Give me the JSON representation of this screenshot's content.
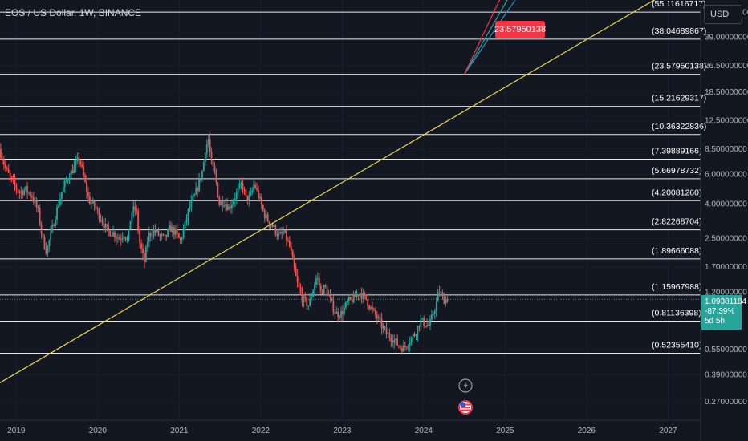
{
  "header": {
    "title": "EOS / US Dollar, 1W, BINANCE",
    "currency_button": "USD"
  },
  "price_tag": {
    "price": "1.09381184",
    "change": "-87.39%",
    "countdown": "5d 5h"
  },
  "callout_label": "23.57950138",
  "icons": [
    "lightning-icon",
    "us-flag-icon"
  ],
  "chart_data": {
    "type": "candlestick",
    "x_range": [
      2018.8,
      2027.4
    ],
    "y_scale": "log",
    "y_range": [
      0.21,
      65
    ],
    "x_tick_labels": [
      "2019",
      "2020",
      "2021",
      "2022",
      "2023",
      "2024",
      "2025",
      "2026",
      "2027"
    ],
    "x_tick_values": [
      2019,
      2020,
      2021,
      2022,
      2023,
      2024,
      2025,
      2026,
      2027
    ],
    "y_tick_labels": [
      "55.00000000",
      "39.00000000",
      "26.50000000",
      "18.50000000",
      "12.50000000",
      "8.50000000",
      "6.00000000",
      "4.00000000",
      "2.50000000",
      "1.70000000",
      "1.20000000",
      "0.55000000",
      "0.39000000",
      "0.27000000"
    ],
    "y_tick_values": [
      55,
      39,
      26.5,
      18.5,
      12.5,
      8.5,
      6,
      4,
      2.5,
      1.7,
      1.2,
      0.55,
      0.39,
      0.27
    ],
    "horizontal_levels": [
      {
        "value": 55.11616717,
        "label": "(55.11616717)"
      },
      {
        "value": 38.04689867,
        "label": "(38.04689867)"
      },
      {
        "value": 23.57950138,
        "label": "(23.57950138)"
      },
      {
        "value": 15.21629317,
        "label": "(15.21629317)"
      },
      {
        "value": 10.36322836,
        "label": "(10.36322836)"
      },
      {
        "value": 7.39889166,
        "label": "(7.39889166)"
      },
      {
        "value": 5.66978732,
        "label": "(5.66978732)"
      },
      {
        "value": 4.2008126,
        "label": "(4.20081260)"
      },
      {
        "value": 2.82268704,
        "label": "(2.82268704)"
      },
      {
        "value": 1.89666088,
        "label": "(1.89666088)"
      },
      {
        "value": 1.15967988,
        "label": "(1.15967988)"
      },
      {
        "value": 0.81136398,
        "label": "(0.81136398)"
      },
      {
        "value": 0.5235541,
        "label": "(0.52355410)"
      }
    ],
    "trendline": {
      "x1": 2018.8,
      "y1": 0.35,
      "x2": 2026.9,
      "y2": 68,
      "color": "#e6d74a"
    },
    "projection_rays": [
      {
        "x1": 2024.5,
        "y1": 23.58,
        "x2": 2025.05,
        "y2": 68,
        "color": "#26a69a"
      },
      {
        "x1": 2024.5,
        "y1": 23.58,
        "x2": 2025.15,
        "y2": 68,
        "color": "#2a8fbd"
      },
      {
        "x1": 2024.5,
        "y1": 23.58,
        "x2": 2024.95,
        "y2": 68,
        "color": "#f23645"
      }
    ],
    "last_price": 1.09381184,
    "price_path": [
      [
        2018.8,
        8.5
      ],
      [
        2018.88,
        6.5
      ],
      [
        2018.95,
        5.5
      ],
      [
        2019.05,
        4.7
      ],
      [
        2019.12,
        4.9
      ],
      [
        2019.2,
        4.5
      ],
      [
        2019.28,
        3.6
      ],
      [
        2019.33,
        2.5
      ],
      [
        2019.38,
        2.1
      ],
      [
        2019.43,
        2.6
      ],
      [
        2019.5,
        3.6
      ],
      [
        2019.57,
        4.8
      ],
      [
        2019.65,
        5.9
      ],
      [
        2019.72,
        6.6
      ],
      [
        2019.78,
        7.5
      ],
      [
        2019.83,
        6.0
      ],
      [
        2019.9,
        4.2
      ],
      [
        2019.97,
        3.9
      ],
      [
        2020.05,
        3.3
      ],
      [
        2020.12,
        2.8
      ],
      [
        2020.2,
        2.7
      ],
      [
        2020.28,
        2.5
      ],
      [
        2020.33,
        2.7
      ],
      [
        2020.38,
        2.4
      ],
      [
        2020.42,
        3.6
      ],
      [
        2020.48,
        3.8
      ],
      [
        2020.52,
        2.4
      ],
      [
        2020.58,
        1.8
      ],
      [
        2020.63,
        2.6
      ],
      [
        2020.7,
        2.8
      ],
      [
        2020.77,
        2.6
      ],
      [
        2020.83,
        2.5
      ],
      [
        2020.9,
        2.9
      ],
      [
        2020.97,
        2.7
      ],
      [
        2021.02,
        2.4
      ],
      [
        2021.08,
        3.0
      ],
      [
        2021.13,
        3.8
      ],
      [
        2021.2,
        4.5
      ],
      [
        2021.26,
        5.5
      ],
      [
        2021.3,
        6.5
      ],
      [
        2021.33,
        8.5
      ],
      [
        2021.37,
        9.8
      ],
      [
        2021.4,
        7.0
      ],
      [
        2021.45,
        6.0
      ],
      [
        2021.5,
        4.0
      ],
      [
        2021.55,
        4.2
      ],
      [
        2021.62,
        3.8
      ],
      [
        2021.68,
        4.3
      ],
      [
        2021.73,
        4.8
      ],
      [
        2021.78,
        5.3
      ],
      [
        2021.83,
        4.3
      ],
      [
        2021.88,
        4.4
      ],
      [
        2021.93,
        5.3
      ],
      [
        2022.0,
        4.2
      ],
      [
        2022.05,
        3.5
      ],
      [
        2022.1,
        3.2
      ],
      [
        2022.17,
        2.9
      ],
      [
        2022.23,
        2.6
      ],
      [
        2022.3,
        2.7
      ],
      [
        2022.37,
        2.2
      ],
      [
        2022.45,
        1.4
      ],
      [
        2022.52,
        1.1
      ],
      [
        2022.6,
        1.0
      ],
      [
        2022.66,
        1.3
      ],
      [
        2022.7,
        1.5
      ],
      [
        2022.75,
        1.2
      ],
      [
        2022.8,
        1.3
      ],
      [
        2022.87,
        1.05
      ],
      [
        2022.93,
        0.9
      ],
      [
        2023.0,
        0.9
      ],
      [
        2023.08,
        1.05
      ],
      [
        2023.15,
        1.1
      ],
      [
        2023.22,
        1.2
      ],
      [
        2023.3,
        1.1
      ],
      [
        2023.37,
        0.95
      ],
      [
        2023.44,
        0.85
      ],
      [
        2023.5,
        0.75
      ],
      [
        2023.56,
        0.68
      ],
      [
        2023.62,
        0.65
      ],
      [
        2023.7,
        0.58
      ],
      [
        2023.77,
        0.56
      ],
      [
        2023.83,
        0.62
      ],
      [
        2023.9,
        0.68
      ],
      [
        2023.97,
        0.82
      ],
      [
        2024.03,
        0.78
      ],
      [
        2024.08,
        0.76
      ],
      [
        2024.12,
        0.88
      ],
      [
        2024.17,
        1.05
      ],
      [
        2024.2,
        1.25
      ],
      [
        2024.25,
        1.08
      ],
      [
        2024.3,
        1.1
      ]
    ]
  }
}
